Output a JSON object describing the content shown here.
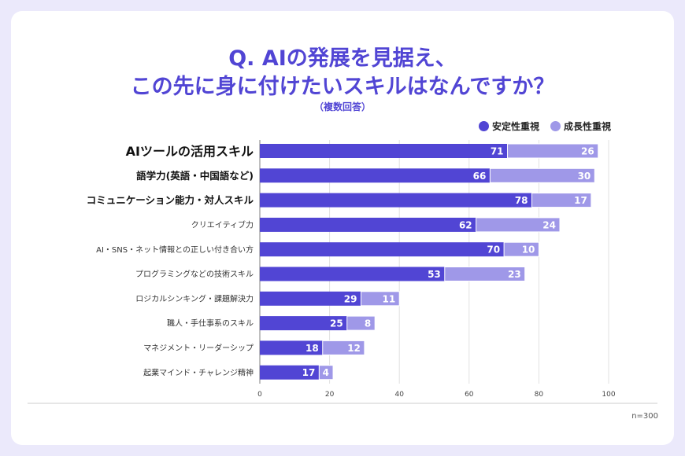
{
  "chart_data": {
    "type": "bar",
    "stacked": true,
    "orientation": "horizontal",
    "title": "Q. AIの発展を見据え、\nこの先に身に付けたいスキルはなんですか？",
    "title_line1": "Q. AIの発展を見据え、",
    "title_line2": "この先に身に付けたいスキルはなんですか？",
    "subtitle": "（複数回答）",
    "categories": [
      "AIツールの活用スキル",
      "語学力(英語・中国語など)",
      "コミュニケーション能力・対人スキル",
      "クリエイティブ力",
      "AI・SNS・ネット情報との正しい付き合い方",
      "プログラミングなどの技術スキル",
      "ロジカルシンキング・課題解決力",
      "職人・手仕事系のスキル",
      "マネジメント・リーダーシップ",
      "起業マインド・チャレンジ精神"
    ],
    "series": [
      {
        "name": "安定性重視",
        "color": "#5145d4",
        "values": [
          71,
          66,
          78,
          62,
          70,
          53,
          29,
          25,
          18,
          17
        ]
      },
      {
        "name": "成長性重視",
        "color": "#9f98e8",
        "values": [
          26,
          30,
          17,
          24,
          10,
          23,
          11,
          8,
          12,
          4
        ]
      }
    ],
    "xlim": [
      0,
      100
    ],
    "xticks": [
      0,
      20,
      40,
      60,
      80,
      100
    ],
    "grid": true,
    "legend_position": "top-right",
    "note": "n=300"
  }
}
